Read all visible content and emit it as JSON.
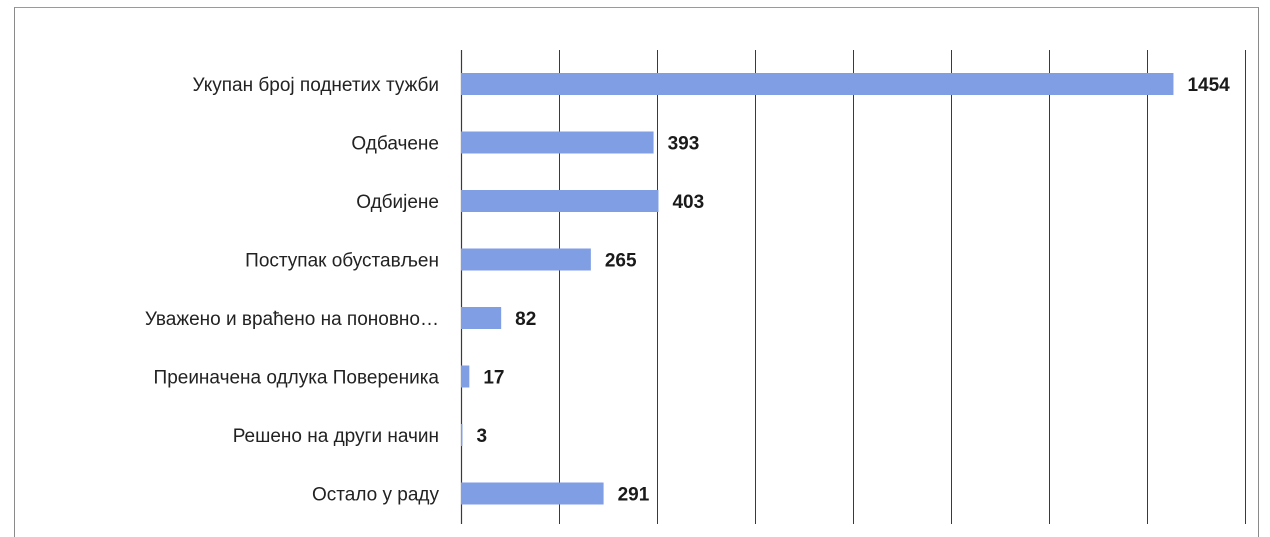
{
  "colors": {
    "bar": "#7f9ee4",
    "gridline": "#3a3a3a",
    "frame": "#8a8a8a"
  },
  "chart_data": {
    "type": "bar",
    "orientation": "horizontal",
    "categories": [
      "Укупан број поднетих тужби",
      "Одбачене",
      "Одбијене",
      "Поступак обустављен",
      "Уважено и враћено на поновно…",
      "Преиначена одлука Повереника",
      "Решено на други начин",
      "Остало у раду"
    ],
    "values": [
      1454,
      393,
      403,
      265,
      82,
      17,
      3,
      291
    ],
    "xlim": [
      0,
      1600
    ],
    "grid": true,
    "legend": "none"
  }
}
